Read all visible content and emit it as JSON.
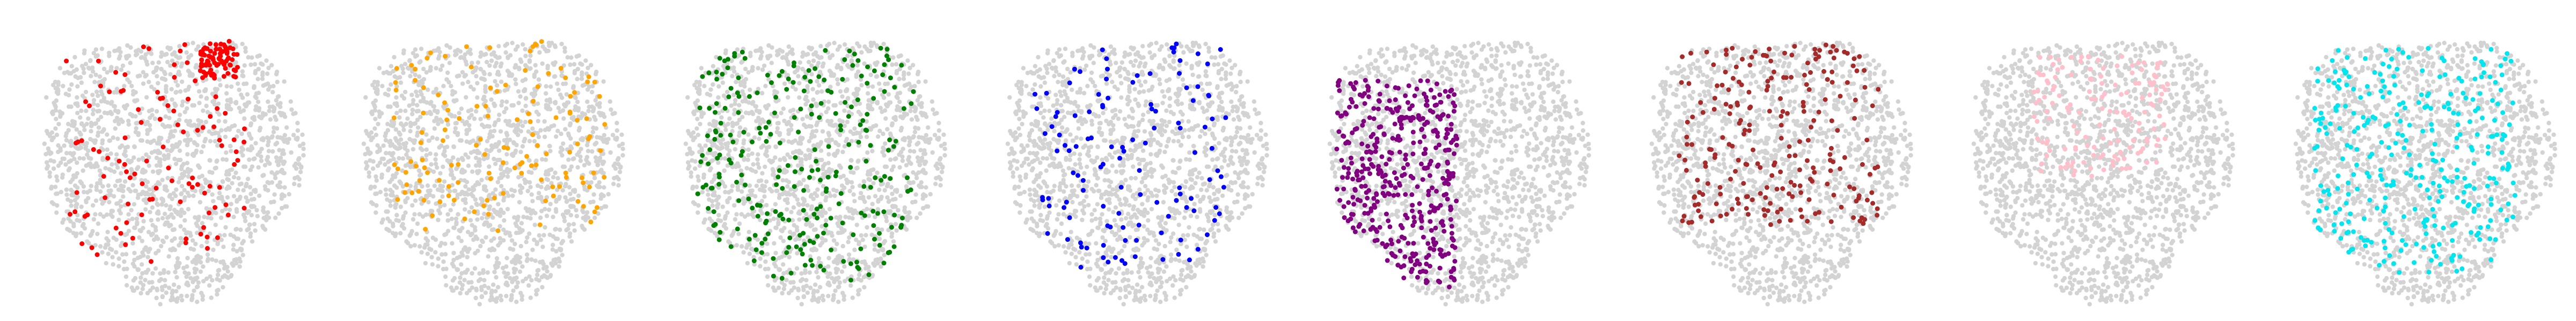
{
  "figure": {
    "background": "#ffffff",
    "background_point_color": "#d3d3d3"
  },
  "chart_data": [
    {
      "type": "scatter",
      "highlight_color": "#ff0000",
      "grid": false,
      "axes_visible": false,
      "highlight_region": {
        "x_range": [
          -65,
          45
        ],
        "y_range": [
          -65,
          80
        ],
        "dense_cluster": [
          28,
          62
        ]
      },
      "highlight_count": 180,
      "background_count": 1600
    },
    {
      "type": "scatter",
      "highlight_color": "#ffa500",
      "grid": false,
      "axes_visible": false,
      "highlight_region": {
        "x_range": [
          -60,
          70
        ],
        "y_range": [
          -45,
          75
        ]
      },
      "highlight_count": 130,
      "background_count": 1600
    },
    {
      "type": "scatter",
      "highlight_color": "#008000",
      "grid": false,
      "axes_visible": false,
      "highlight_region": {
        "x_range": [
          -70,
          60
        ],
        "y_range": [
          -75,
          70
        ]
      },
      "highlight_count": 260,
      "background_count": 1600
    },
    {
      "type": "scatter",
      "highlight_color": "#0000ff",
      "grid": false,
      "axes_visible": false,
      "highlight_region": {
        "x_range": [
          -60,
          55
        ],
        "y_range": [
          -70,
          80
        ]
      },
      "highlight_count": 120,
      "background_count": 1600
    },
    {
      "type": "scatter",
      "highlight_color": "#800080",
      "grid": false,
      "axes_visible": false,
      "highlight_region": {
        "x_range": [
          -72,
          0
        ],
        "y_range": [
          -80,
          50
        ]
      },
      "highlight_count": 420,
      "background_count": 1600
    },
    {
      "type": "scatter",
      "highlight_color": "#a52a2a",
      "grid": false,
      "axes_visible": false,
      "highlight_region": {
        "x_range": [
          -60,
          60
        ],
        "y_range": [
          -40,
          75
        ]
      },
      "highlight_count": 230,
      "background_count": 1600
    },
    {
      "type": "scatter",
      "highlight_color": "#ffc0cb",
      "grid": false,
      "axes_visible": false,
      "highlight_region": {
        "x_range": [
          -40,
          40
        ],
        "y_range": [
          -10,
          65
        ]
      },
      "highlight_count": 150,
      "background_count": 1600
    },
    {
      "type": "scatter",
      "highlight_color": "#00e5ee",
      "grid": false,
      "axes_visible": false,
      "highlight_region": {
        "x_range": [
          -65,
          55
        ],
        "y_range": [
          -70,
          70
        ]
      },
      "highlight_count": 320,
      "background_count": 1600
    }
  ]
}
